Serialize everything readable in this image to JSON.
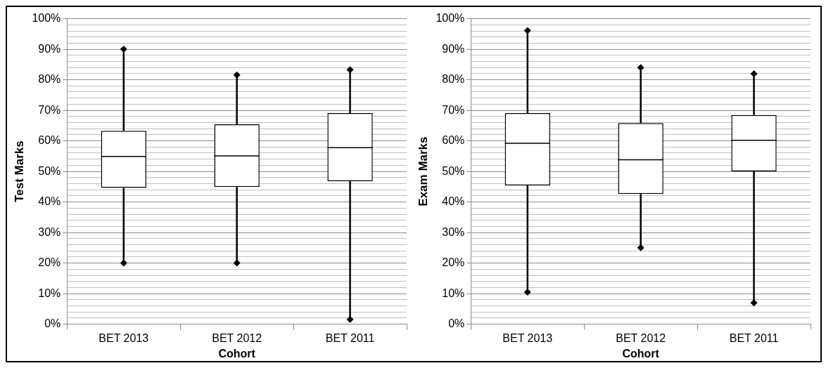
{
  "chart_data": [
    {
      "type": "box",
      "ylabel": "Test Marks",
      "xlabel": "Cohort",
      "categories": [
        "BET 2013",
        "BET 2012",
        "BET 2011"
      ],
      "color": "#000000",
      "marker": "diamond",
      "grid": "y",
      "legend": false,
      "ylim": [
        0,
        100
      ],
      "yticks": [
        {
          "value": 0,
          "label": "0%"
        },
        {
          "value": 2,
          "label": null
        },
        {
          "value": 4,
          "label": null
        },
        {
          "value": 6,
          "label": null
        },
        {
          "value": 8,
          "label": null
        },
        {
          "value": 10,
          "label": "10%"
        },
        {
          "value": 12,
          "label": null
        },
        {
          "value": 14,
          "label": null
        },
        {
          "value": 16,
          "label": null
        },
        {
          "value": 18,
          "label": null
        },
        {
          "value": 20,
          "label": "20%"
        },
        {
          "value": 22,
          "label": null
        },
        {
          "value": 24,
          "label": null
        },
        {
          "value": 26,
          "label": null
        },
        {
          "value": 28,
          "label": null
        },
        {
          "value": 30,
          "label": "30%"
        },
        {
          "value": 32,
          "label": null
        },
        {
          "value": 34,
          "label": null
        },
        {
          "value": 36,
          "label": null
        },
        {
          "value": 38,
          "label": null
        },
        {
          "value": 40,
          "label": "40%"
        },
        {
          "value": 42,
          "label": null
        },
        {
          "value": 44,
          "label": null
        },
        {
          "value": 46,
          "label": null
        },
        {
          "value": 48,
          "label": null
        },
        {
          "value": 50,
          "label": "50%"
        },
        {
          "value": 52,
          "label": null
        },
        {
          "value": 54,
          "label": null
        },
        {
          "value": 56,
          "label": null
        },
        {
          "value": 58,
          "label": null
        },
        {
          "value": 60,
          "label": "60%"
        },
        {
          "value": 62,
          "label": null
        },
        {
          "value": 64,
          "label": null
        },
        {
          "value": 66,
          "label": null
        },
        {
          "value": 68,
          "label": null
        },
        {
          "value": 70,
          "label": "70%"
        },
        {
          "value": 72,
          "label": null
        },
        {
          "value": 74,
          "label": null
        },
        {
          "value": 76,
          "label": null
        },
        {
          "value": 78,
          "label": null
        },
        {
          "value": 80,
          "label": "80%"
        },
        {
          "value": 82,
          "label": null
        },
        {
          "value": 84,
          "label": null
        },
        {
          "value": 86,
          "label": null
        },
        {
          "value": 88,
          "label": null
        },
        {
          "value": 90,
          "label": "90%"
        },
        {
          "value": 92,
          "label": null
        },
        {
          "value": 94,
          "label": null
        },
        {
          "value": 96,
          "label": null
        },
        {
          "value": 98,
          "label": null
        },
        {
          "value": 100,
          "label": "100%"
        }
      ],
      "boxes": [
        {
          "low": 20,
          "q1": 44.6,
          "median": 54.9,
          "q3": 63.3,
          "high": 90
        },
        {
          "low": 20,
          "q1": 44.9,
          "median": 55.1,
          "q3": 65.4,
          "high": 81.6
        },
        {
          "low": 1.6,
          "q1": 46.8,
          "median": 57.8,
          "q3": 69.1,
          "high": 83.3
        }
      ],
      "series": [
        {
          "type": "scatter",
          "color": "#000000",
          "x": [
            "BET 2013",
            "BET 2013",
            "BET 2012",
            "BET 2012",
            "BET 2011",
            "BET 2011"
          ],
          "values": [
            90,
            20,
            81.6,
            20,
            83.3,
            1.6
          ]
        }
      ]
    },
    {
      "type": "box",
      "ylabel": "Exam Marks",
      "xlabel": "Cohort",
      "categories": [
        "BET 2013",
        "BET 2012",
        "BET 2011"
      ],
      "color": "#000000",
      "marker": "diamond",
      "grid": "y",
      "legend": false,
      "ylim": [
        0,
        100
      ],
      "yticks": [
        {
          "value": 0,
          "label": "0%"
        },
        {
          "value": 2,
          "label": null
        },
        {
          "value": 4,
          "label": null
        },
        {
          "value": 6,
          "label": null
        },
        {
          "value": 8,
          "label": null
        },
        {
          "value": 10,
          "label": "10%"
        },
        {
          "value": 12,
          "label": null
        },
        {
          "value": 14,
          "label": null
        },
        {
          "value": 16,
          "label": null
        },
        {
          "value": 18,
          "label": null
        },
        {
          "value": 20,
          "label": "20%"
        },
        {
          "value": 22,
          "label": null
        },
        {
          "value": 24,
          "label": null
        },
        {
          "value": 26,
          "label": null
        },
        {
          "value": 28,
          "label": null
        },
        {
          "value": 30,
          "label": "30%"
        },
        {
          "value": 32,
          "label": null
        },
        {
          "value": 34,
          "label": null
        },
        {
          "value": 36,
          "label": null
        },
        {
          "value": 38,
          "label": null
        },
        {
          "value": 40,
          "label": "40%"
        },
        {
          "value": 42,
          "label": null
        },
        {
          "value": 44,
          "label": null
        },
        {
          "value": 46,
          "label": null
        },
        {
          "value": 48,
          "label": null
        },
        {
          "value": 50,
          "label": "50%"
        },
        {
          "value": 52,
          "label": null
        },
        {
          "value": 54,
          "label": null
        },
        {
          "value": 56,
          "label": null
        },
        {
          "value": 58,
          "label": null
        },
        {
          "value": 60,
          "label": "60%"
        },
        {
          "value": 62,
          "label": null
        },
        {
          "value": 64,
          "label": null
        },
        {
          "value": 66,
          "label": null
        },
        {
          "value": 68,
          "label": null
        },
        {
          "value": 70,
          "label": "70%"
        },
        {
          "value": 72,
          "label": null
        },
        {
          "value": 74,
          "label": null
        },
        {
          "value": 76,
          "label": null
        },
        {
          "value": 78,
          "label": null
        },
        {
          "value": 80,
          "label": "80%"
        },
        {
          "value": 82,
          "label": null
        },
        {
          "value": 84,
          "label": null
        },
        {
          "value": 86,
          "label": null
        },
        {
          "value": 88,
          "label": null
        },
        {
          "value": 90,
          "label": "90%"
        },
        {
          "value": 92,
          "label": null
        },
        {
          "value": 94,
          "label": null
        },
        {
          "value": 96,
          "label": null
        },
        {
          "value": 98,
          "label": null
        },
        {
          "value": 100,
          "label": "100%"
        }
      ],
      "boxes": [
        {
          "low": 10.5,
          "q1": 45.4,
          "median": 59.2,
          "q3": 69.1,
          "high": 96.1
        },
        {
          "low": 25,
          "q1": 42.6,
          "median": 53.8,
          "q3": 65.8,
          "high": 84
        },
        {
          "low": 7,
          "q1": 50,
          "median": 60.2,
          "q3": 68.5,
          "high": 82
        }
      ],
      "series": [
        {
          "type": "scatter",
          "color": "#000000",
          "x": [
            "BET 2013",
            "BET 2013",
            "BET 2012",
            "BET 2012",
            "BET 2011",
            "BET 2011"
          ],
          "values": [
            96.1,
            10.5,
            84,
            25,
            82,
            7
          ]
        }
      ]
    }
  ]
}
